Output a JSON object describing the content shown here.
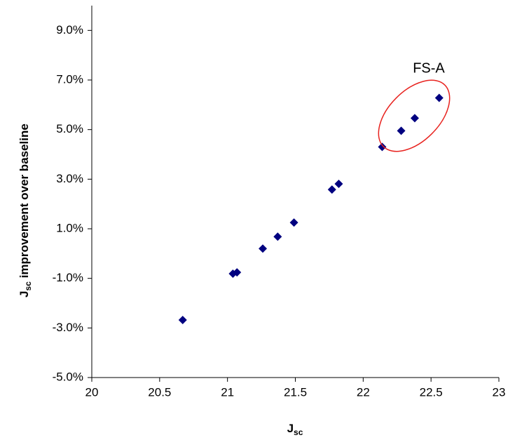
{
  "chart_data": {
    "type": "scatter",
    "xlabel": [
      "J",
      "sc"
    ],
    "ylabel": [
      "J",
      "sc",
      " improvement over baseline"
    ],
    "x": [
      20.67,
      21.04,
      21.07,
      21.26,
      21.37,
      21.49,
      21.77,
      21.82,
      22.14,
      22.28,
      22.38,
      22.56
    ],
    "series": [
      {
        "color": "#000080",
        "values": [
          -2.68,
          -0.81,
          -0.76,
          0.2,
          0.68,
          1.25,
          2.58,
          2.81,
          4.3,
          4.95,
          5.46,
          6.28
        ]
      }
    ],
    "xlim": [
      20,
      23
    ],
    "xticks": [
      20,
      20.5,
      21,
      21.5,
      22,
      22.5,
      23
    ],
    "ylim": [
      -5,
      10
    ],
    "yticks": [
      {
        "value": -5,
        "label": "-5.0%"
      },
      {
        "value": -3,
        "label": "-3.0%"
      },
      {
        "value": -1,
        "label": "-1.0%"
      },
      {
        "value": 1,
        "label": "1.0%"
      },
      {
        "value": 3,
        "label": "3.0%"
      },
      {
        "value": 5,
        "label": "5.0%"
      },
      {
        "value": 7,
        "label": "7.0%"
      },
      {
        "value": 9,
        "label": "9.0%"
      }
    ],
    "annotation": "FS-A",
    "annotation_color": "#e8231f"
  }
}
